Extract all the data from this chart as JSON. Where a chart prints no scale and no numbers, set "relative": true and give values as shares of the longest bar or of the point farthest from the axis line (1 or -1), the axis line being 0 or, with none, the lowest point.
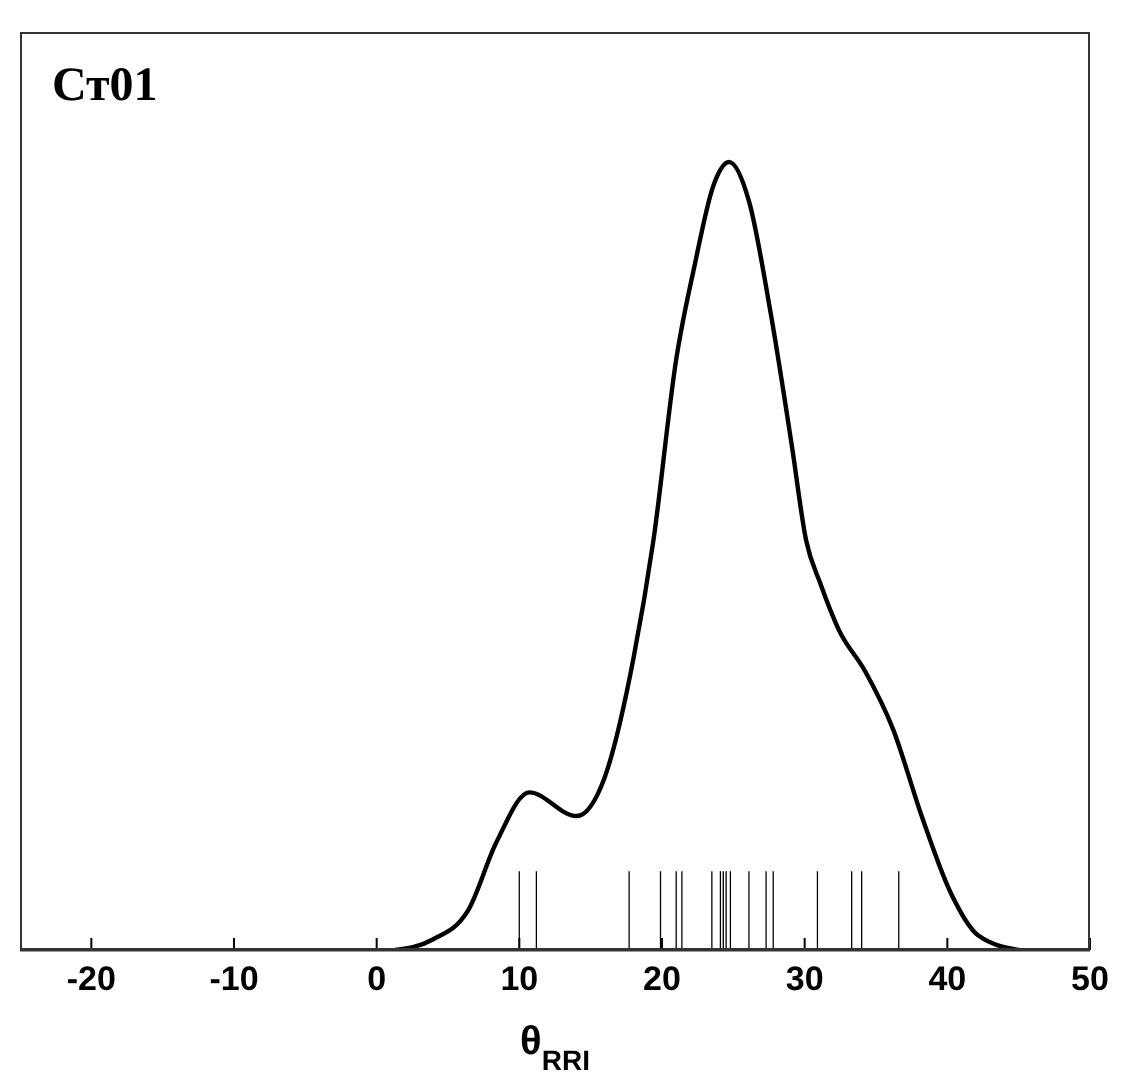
{
  "chart_data": {
    "type": "line",
    "title": "Ст01",
    "xlabel": "θ$_{RRI}$",
    "relative": true,
    "marker": "none",
    "xlim": [
      -25,
      50
    ],
    "xticks": [
      -20,
      -10,
      0,
      10,
      20,
      30,
      40,
      50
    ],
    "series": [
      {
        "color": "#000000",
        "x": [
          1.3,
          3.9,
          6.4,
          8.4,
          10.7,
          14.0,
          16.0,
          18.0,
          19.4,
          21.0,
          22.3,
          23.6,
          24.7,
          26.1,
          27.6,
          29.1,
          30.1,
          31.1,
          32.4,
          34.2,
          36.2,
          38.2,
          40.2,
          42.2,
          45.0
        ],
        "values": [
          0,
          0.013,
          0.05,
          0.137,
          0.2,
          0.17,
          0.22,
          0.37,
          0.52,
          0.75,
          0.87,
          0.97,
          1,
          0.95,
          0.81,
          0.64,
          0.52,
          0.465,
          0.406,
          0.355,
          0.28,
          0.17,
          0.074,
          0.018,
          0
        ]
      },
      {
        "type": "bar",
        "color": "#000000",
        "x": [
          10.0,
          11.2,
          17.7,
          19.9,
          21.0,
          21.4,
          23.5,
          24.1,
          24.3,
          24.5,
          24.8,
          26.1,
          27.3,
          27.8,
          30.9,
          33.3,
          34.0,
          36.6
        ],
        "values": [
          0.1,
          0.1,
          0.1,
          0.1,
          0.1,
          0.1,
          0.1,
          0.1,
          0.1,
          0.1,
          0.1,
          0.1,
          0.1,
          0.1,
          0.1,
          0.1,
          0.1,
          0.1
        ]
      }
    ]
  }
}
